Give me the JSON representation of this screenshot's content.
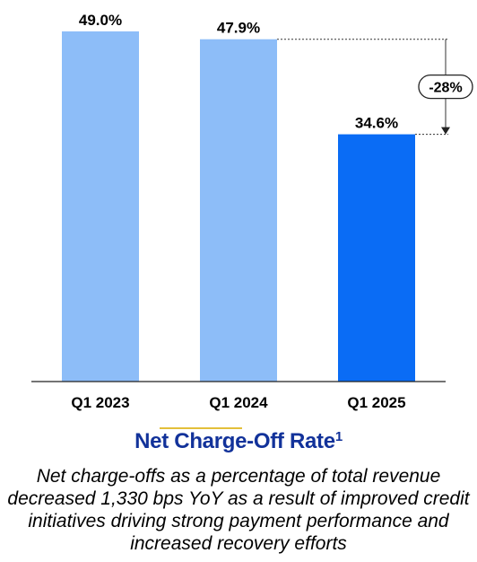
{
  "chart_data": {
    "type": "bar",
    "categories": [
      "Q1 2023",
      "Q1 2024",
      "Q1 2025"
    ],
    "values": [
      49.0,
      47.9,
      34.6
    ],
    "value_labels": [
      "49.0%",
      "47.9%",
      "34.6%"
    ],
    "colors": [
      "#8dbdf8",
      "#8dbdf8",
      "#0a6cf5"
    ],
    "ylim": [
      0,
      52
    ],
    "grid": false,
    "change_annotation": "-28%",
    "annotation_from": "Q1 2024",
    "annotation_to": "Q1 2025"
  },
  "title": {
    "main": "Net Charge-Off Rate",
    "footnote_mark": "1"
  },
  "caption": "Net charge-offs as a percentage of total revenue decreased 1,330 bps YoY as a result of improved credit initiatives driving strong payment performance and increased recovery efforts"
}
